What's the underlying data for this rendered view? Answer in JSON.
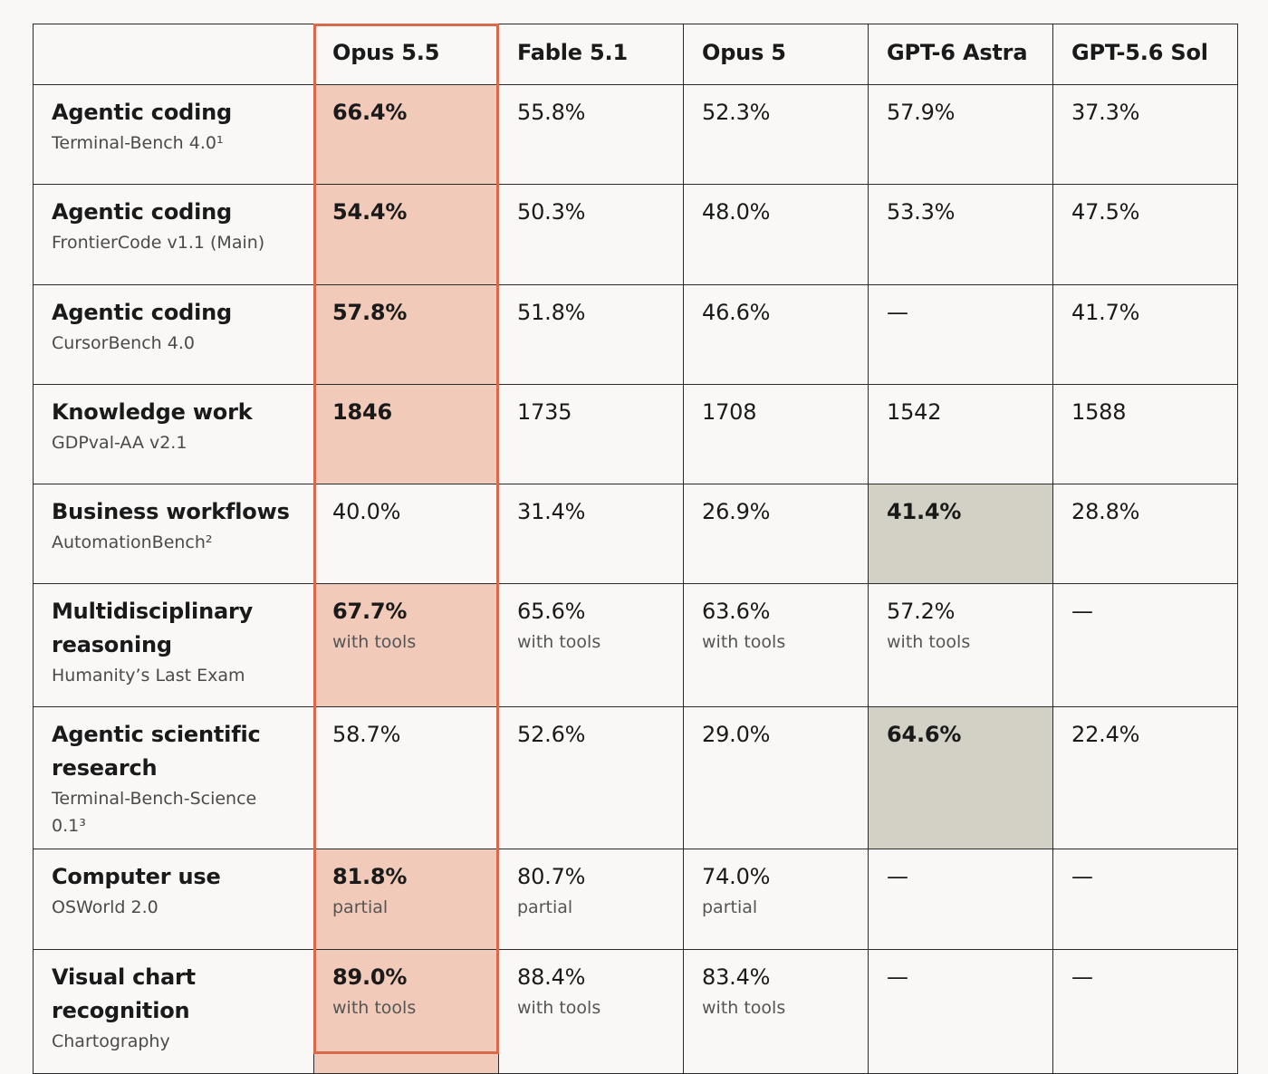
{
  "chart_data": {
    "type": "table",
    "columns": [
      "Opus 5.5",
      "Fable 5.1",
      "Opus 5",
      "GPT-6 Astra",
      "GPT-5.6 Sol"
    ],
    "highlight_column": "Opus 5.5",
    "colors": {
      "highlight_outline": "#d9694a",
      "highlight_fill": "#f1cab9",
      "best_other_fill": "#d3d1c5",
      "background": "#f9f8f6"
    },
    "rows": [
      {
        "title": "Agentic coding",
        "subtitle": "Terminal-Bench 4.0¹",
        "values": [
          "66.4%",
          "55.8%",
          "52.3%",
          "57.9%",
          "37.3%"
        ],
        "notes": [
          "",
          "",
          "",
          "",
          ""
        ],
        "best_index": 0
      },
      {
        "title": "Agentic coding",
        "subtitle": "FrontierCode v1.1 (Main)",
        "values": [
          "54.4%",
          "50.3%",
          "48.0%",
          "53.3%",
          "47.5%"
        ],
        "notes": [
          "",
          "",
          "",
          "",
          ""
        ],
        "best_index": 0
      },
      {
        "title": "Agentic coding",
        "subtitle": "CursorBench 4.0",
        "values": [
          "57.8%",
          "51.8%",
          "46.6%",
          "—",
          "41.7%"
        ],
        "notes": [
          "",
          "",
          "",
          "",
          ""
        ],
        "best_index": 0
      },
      {
        "title": "Knowledge work",
        "subtitle": "GDPval-AA v2.1",
        "values": [
          "1846",
          "1735",
          "1708",
          "1542",
          "1588"
        ],
        "notes": [
          "",
          "",
          "",
          "",
          ""
        ],
        "best_index": 0
      },
      {
        "title": "Business workflows",
        "subtitle": "AutomationBench²",
        "values": [
          "40.0%",
          "31.4%",
          "26.9%",
          "41.4%",
          "28.8%"
        ],
        "notes": [
          "",
          "",
          "",
          "",
          ""
        ],
        "best_index": 3
      },
      {
        "title": "Multidisciplinary reasoning",
        "subtitle": "Humanity’s Last Exam",
        "values": [
          "67.7%",
          "65.6%",
          "63.6%",
          "57.2%",
          "—"
        ],
        "notes": [
          "with tools",
          "with tools",
          "with tools",
          "with tools",
          ""
        ],
        "best_index": 0
      },
      {
        "title": "Agentic scientific research",
        "subtitle": "Terminal-Bench-Science 0.1³",
        "values": [
          "58.7%",
          "52.6%",
          "29.0%",
          "64.6%",
          "22.4%"
        ],
        "notes": [
          "",
          "",
          "",
          "",
          ""
        ],
        "best_index": 3
      },
      {
        "title": "Computer use",
        "subtitle": "OSWorld 2.0",
        "values": [
          "81.8%",
          "80.7%",
          "74.0%",
          "—",
          "—"
        ],
        "notes": [
          "partial",
          "partial",
          "partial",
          "",
          ""
        ],
        "best_index": 0
      },
      {
        "title": "Visual chart recognition",
        "subtitle": "Chartography",
        "values": [
          "89.0%",
          "88.4%",
          "83.4%",
          "—",
          "—"
        ],
        "notes": [
          "with tools",
          "with tools",
          "with tools",
          "",
          ""
        ],
        "best_index": 0
      }
    ]
  }
}
